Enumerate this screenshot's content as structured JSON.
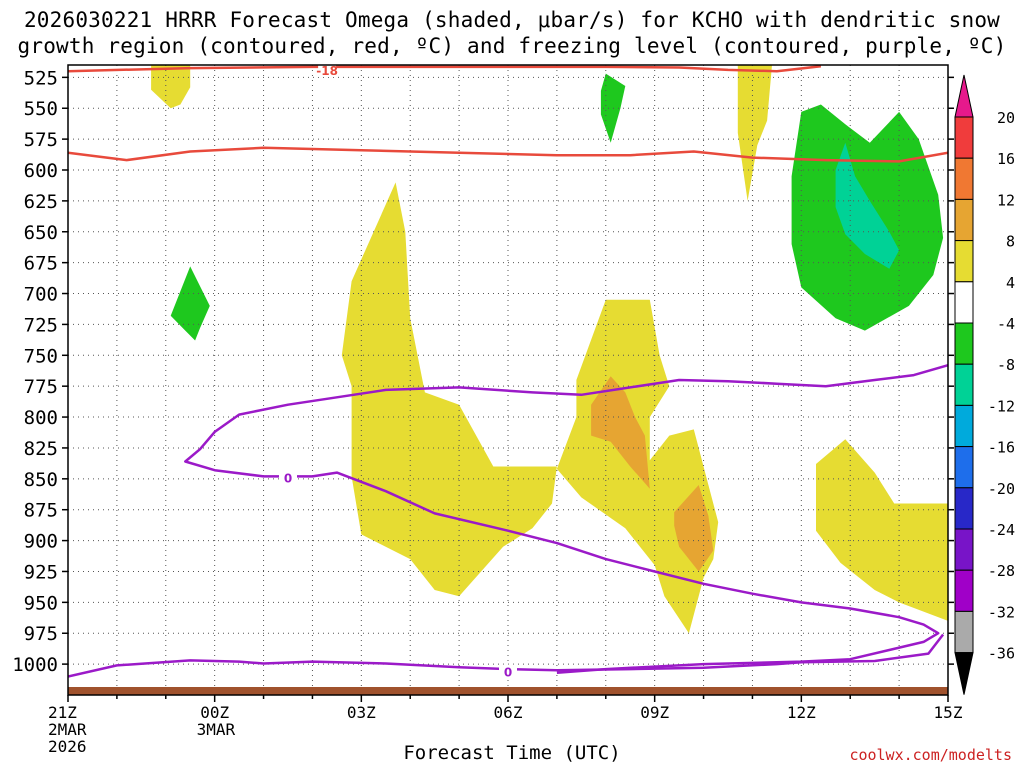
{
  "chart_data": {
    "type": "heatmap",
    "title_line1": "2026030221 HRRR Forecast Omega (shaded, μbar/s) for KCHO with dendritic snow",
    "title_line2": "growth region (contoured, red, ºC) and freezing level (contoured, purple, ºC)",
    "xlabel": "Forecast Time (UTC)",
    "ylabel": "",
    "credit": "coolwx.com/modelts",
    "x_range": [
      0,
      18
    ],
    "y_range": [
      515,
      1025
    ],
    "x_ticks": [
      {
        "x": 0,
        "lines": [
          "21Z",
          "2MAR",
          "2026"
        ]
      },
      {
        "x": 3,
        "lines": [
          "00Z",
          "3MAR"
        ]
      },
      {
        "x": 6,
        "lines": [
          "03Z"
        ]
      },
      {
        "x": 9,
        "lines": [
          "06Z"
        ]
      },
      {
        "x": 12,
        "lines": [
          "09Z"
        ]
      },
      {
        "x": 15,
        "lines": [
          "12Z"
        ]
      },
      {
        "x": 18,
        "lines": [
          "15Z"
        ]
      }
    ],
    "y_ticks": [
      525,
      550,
      575,
      600,
      625,
      650,
      675,
      700,
      725,
      750,
      775,
      800,
      825,
      850,
      875,
      900,
      925,
      950,
      975,
      1000
    ],
    "colorbar": {
      "labels": [
        "20",
        "16",
        "12",
        "8",
        "4",
        "-4",
        "-8",
        "-12",
        "-16",
        "-20",
        "-24",
        "-28",
        "-32",
        "-36"
      ],
      "colors": [
        "#ff1493",
        "#f03c3c",
        "#f07832",
        "#e6a532",
        "#e6dc32",
        "#ffffff",
        "#1ec81e",
        "#00d296",
        "#00aadc",
        "#1e6eeb",
        "#2828c8",
        "#7814c8",
        "#a000c8",
        "#aaaaaa",
        "#000000"
      ],
      "top_arrow_color": "#e6198c",
      "bottom_arrow_color": "#000000"
    },
    "shading_colors": {
      "omega_4_8": "#e6dc32",
      "omega_8_12": "#e6a532",
      "omega_m4_m8": "#1ec81e",
      "omega_m8_m12": "#00d296"
    },
    "omega_regions": [
      {
        "level": "4 to 8",
        "color": "#e6dc32",
        "points": [
          [
            1.7,
            515
          ],
          [
            2.5,
            515
          ],
          [
            2.5,
            533
          ],
          [
            2.3,
            547
          ],
          [
            2.1,
            550
          ],
          [
            1.7,
            535
          ]
        ]
      },
      {
        "level": "4 to 8",
        "color": "#e6dc32",
        "points": [
          [
            13.7,
            515
          ],
          [
            14.4,
            515
          ],
          [
            14.3,
            560
          ],
          [
            14.1,
            580
          ],
          [
            13.9,
            625
          ],
          [
            13.7,
            570
          ]
        ]
      },
      {
        "level": "4 to 8",
        "color": "#e6dc32",
        "points": [
          [
            5.8,
            690
          ],
          [
            6.7,
            610
          ],
          [
            6.9,
            650
          ],
          [
            7.0,
            720
          ],
          [
            7.3,
            780
          ],
          [
            8.0,
            790
          ],
          [
            8.7,
            840
          ],
          [
            10.0,
            840
          ],
          [
            9.9,
            870
          ],
          [
            9.5,
            890
          ],
          [
            8.9,
            905
          ],
          [
            8.0,
            945
          ],
          [
            7.5,
            940
          ],
          [
            7.0,
            915
          ],
          [
            6.0,
            895
          ],
          [
            5.8,
            848
          ],
          [
            5.8,
            775
          ],
          [
            5.6,
            750
          ]
        ]
      },
      {
        "level": "4 to 8",
        "color": "#e6dc32",
        "points": [
          [
            10.4,
            770
          ],
          [
            11.0,
            705
          ],
          [
            11.9,
            705
          ],
          [
            12.1,
            750
          ],
          [
            12.3,
            775
          ],
          [
            11.9,
            800
          ],
          [
            11.9,
            835
          ],
          [
            12.3,
            815
          ],
          [
            12.8,
            810
          ],
          [
            13.1,
            855
          ],
          [
            13.3,
            885
          ],
          [
            13.2,
            915
          ],
          [
            13.0,
            930
          ],
          [
            12.7,
            975
          ],
          [
            12.2,
            945
          ],
          [
            12.0,
            920
          ],
          [
            11.4,
            890
          ],
          [
            10.5,
            865
          ],
          [
            10.0,
            842
          ],
          [
            10.4,
            800
          ]
        ]
      },
      {
        "level": "4 to 8",
        "color": "#e6dc32",
        "points": [
          [
            15.3,
            838
          ],
          [
            15.9,
            818
          ],
          [
            16.5,
            845
          ],
          [
            16.9,
            870
          ],
          [
            18.0,
            870
          ],
          [
            18.0,
            965
          ],
          [
            17.0,
            950
          ],
          [
            16.5,
            940
          ],
          [
            15.8,
            918
          ],
          [
            15.3,
            892
          ]
        ]
      },
      {
        "level": "8 to 12",
        "color": "#e6a532",
        "points": [
          [
            10.7,
            790
          ],
          [
            11.1,
            767
          ],
          [
            11.4,
            780
          ],
          [
            11.6,
            800
          ],
          [
            11.8,
            815
          ],
          [
            11.9,
            858
          ],
          [
            11.5,
            840
          ],
          [
            11.1,
            820
          ],
          [
            10.7,
            815
          ]
        ]
      },
      {
        "level": "8 to 12",
        "color": "#e6a532",
        "points": [
          [
            12.4,
            877
          ],
          [
            12.9,
            855
          ],
          [
            13.1,
            880
          ],
          [
            13.2,
            908
          ],
          [
            12.9,
            925
          ],
          [
            12.5,
            905
          ],
          [
            12.4,
            888
          ]
        ]
      },
      {
        "level": "-4 to -8",
        "color": "#1ec81e",
        "points": [
          [
            2.1,
            718
          ],
          [
            2.5,
            678
          ],
          [
            2.9,
            710
          ],
          [
            2.7,
            728
          ],
          [
            2.6,
            738
          ],
          [
            2.4,
            730
          ]
        ]
      },
      {
        "level": "-4 to -8",
        "color": "#1ec81e",
        "points": [
          [
            10.9,
            536
          ],
          [
            11.0,
            522
          ],
          [
            11.4,
            532
          ],
          [
            11.3,
            550
          ],
          [
            11.1,
            578
          ],
          [
            10.9,
            555
          ]
        ]
      },
      {
        "level": "-4 to -8",
        "color": "#1ec81e",
        "points": [
          [
            14.8,
            605
          ],
          [
            15.0,
            553
          ],
          [
            15.4,
            547
          ],
          [
            15.9,
            563
          ],
          [
            16.4,
            578
          ],
          [
            17.0,
            553
          ],
          [
            17.4,
            575
          ],
          [
            17.8,
            620
          ],
          [
            17.9,
            655
          ],
          [
            17.7,
            685
          ],
          [
            17.2,
            710
          ],
          [
            16.3,
            730
          ],
          [
            15.7,
            720
          ],
          [
            15.0,
            695
          ],
          [
            14.8,
            660
          ]
        ]
      },
      {
        "level": "-8 to -12",
        "color": "#00d296",
        "points": [
          [
            15.7,
            600
          ],
          [
            15.9,
            578
          ],
          [
            16.1,
            605
          ],
          [
            16.4,
            625
          ],
          [
            16.8,
            650
          ],
          [
            17.0,
            665
          ],
          [
            16.8,
            680
          ],
          [
            16.3,
            668
          ],
          [
            15.9,
            652
          ],
          [
            15.7,
            630
          ]
        ]
      }
    ],
    "contours": [
      {
        "name": "dgz-red-upper",
        "color": "#e84a3c",
        "label": "-18",
        "label_at": [
          5.3,
          519
        ],
        "points": [
          [
            0,
            520
          ],
          [
            2.5,
            517.5
          ],
          [
            5.0,
            516.5
          ],
          [
            8.0,
            516.5
          ],
          [
            11.0,
            516.5
          ],
          [
            12.5,
            517
          ],
          [
            13.5,
            519
          ],
          [
            14.5,
            520
          ],
          [
            15.4,
            516
          ]
        ]
      },
      {
        "name": "dgz-red-lower",
        "color": "#e84a3c",
        "label": "",
        "points": [
          [
            0,
            586
          ],
          [
            1.2,
            592
          ],
          [
            2.5,
            585
          ],
          [
            4.0,
            582
          ],
          [
            6.0,
            584
          ],
          [
            8.0,
            586
          ],
          [
            10.0,
            588
          ],
          [
            11.5,
            588
          ],
          [
            12.8,
            585
          ],
          [
            14.0,
            590
          ],
          [
            15.5,
            592
          ],
          [
            17.0,
            593
          ],
          [
            18.0,
            586
          ]
        ]
      },
      {
        "name": "freezing-level-upper",
        "color": "#9b1ac8",
        "label": "0",
        "label_at": [
          4.5,
          849
        ],
        "points": [
          [
            18.0,
            758
          ],
          [
            17.3,
            766
          ],
          [
            16.5,
            770
          ],
          [
            15.5,
            775
          ],
          [
            14.5,
            773
          ],
          [
            13.5,
            771
          ],
          [
            12.5,
            770
          ],
          [
            11.5,
            776
          ],
          [
            10.5,
            782
          ],
          [
            9.5,
            780
          ],
          [
            8.0,
            776
          ],
          [
            6.5,
            778
          ],
          [
            5.5,
            784
          ],
          [
            4.5,
            790
          ],
          [
            3.5,
            798
          ],
          [
            3.0,
            812
          ],
          [
            2.7,
            826
          ],
          [
            2.4,
            836
          ],
          [
            3.0,
            843
          ],
          [
            4.0,
            848
          ],
          [
            5.0,
            848
          ],
          [
            5.5,
            845
          ],
          [
            6.5,
            860
          ],
          [
            7.5,
            878
          ],
          [
            9.0,
            892
          ],
          [
            10.0,
            902
          ],
          [
            11.0,
            915
          ],
          [
            12.0,
            925
          ],
          [
            13.0,
            935
          ],
          [
            14.0,
            943
          ],
          [
            15.0,
            950
          ],
          [
            16.0,
            955
          ],
          [
            17.0,
            962
          ],
          [
            17.5,
            968
          ],
          [
            17.8,
            975
          ],
          [
            17.5,
            982
          ],
          [
            16.0,
            996
          ],
          [
            15.0,
            998
          ],
          [
            13.0,
            1000
          ],
          [
            11.0,
            1004
          ],
          [
            10.0,
            1007
          ]
        ]
      },
      {
        "name": "freezing-level-lower",
        "color": "#9b1ac8",
        "label": "0",
        "label_at": [
          9.0,
          1006
        ],
        "points": [
          [
            0,
            1010
          ],
          [
            1.0,
            1001
          ],
          [
            2.5,
            997
          ],
          [
            3.5,
            998
          ],
          [
            4.0,
            999.5
          ],
          [
            5.0,
            998
          ],
          [
            6.5,
            999.5
          ],
          [
            8.0,
            1002.5
          ],
          [
            9.0,
            1004
          ],
          [
            10.0,
            1005
          ],
          [
            11.5,
            1004
          ],
          [
            13.0,
            1003
          ],
          [
            14.5,
            1000
          ],
          [
            15.0,
            998.5
          ],
          [
            16.5,
            997.5
          ],
          [
            17.6,
            991.5
          ],
          [
            17.9,
            976
          ]
        ]
      }
    ],
    "ground_color": "#a0522d"
  }
}
